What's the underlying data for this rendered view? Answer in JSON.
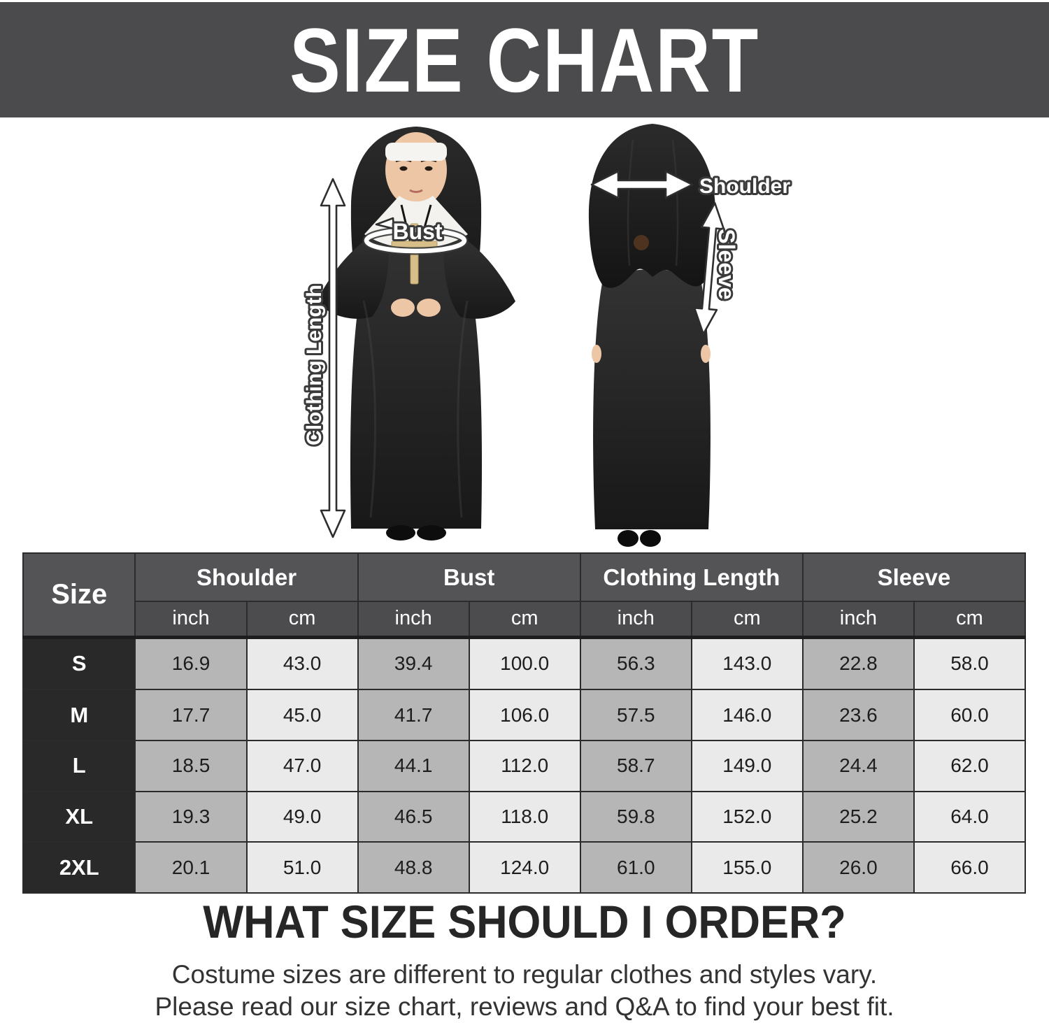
{
  "banner": {
    "title": "SIZE CHART"
  },
  "diagram": {
    "labels": {
      "bust": "Bust",
      "clothing_length": "Clothing Length",
      "shoulder": "Shoulder",
      "sleeve": "Sleeve"
    }
  },
  "table": {
    "size_header": "Size",
    "groups": [
      {
        "label": "Shoulder"
      },
      {
        "label": "Bust"
      },
      {
        "label": "Clothing Length"
      },
      {
        "label": "Sleeve"
      }
    ],
    "unit_headers": [
      "inch",
      "cm",
      "inch",
      "cm",
      "inch",
      "cm",
      "inch",
      "cm"
    ],
    "rows": [
      {
        "size": "S",
        "values": [
          "16.9",
          "43.0",
          "39.4",
          "100.0",
          "56.3",
          "143.0",
          "22.8",
          "58.0"
        ]
      },
      {
        "size": "M",
        "values": [
          "17.7",
          "45.0",
          "41.7",
          "106.0",
          "57.5",
          "146.0",
          "23.6",
          "60.0"
        ]
      },
      {
        "size": "L",
        "values": [
          "18.5",
          "47.0",
          "44.1",
          "112.0",
          "58.7",
          "149.0",
          "24.4",
          "62.0"
        ]
      },
      {
        "size": "XL",
        "values": [
          "19.3",
          "49.0",
          "46.5",
          "118.0",
          "59.8",
          "152.0",
          "25.2",
          "64.0"
        ]
      },
      {
        "size": "2XL",
        "values": [
          "20.1",
          "51.0",
          "48.8",
          "124.0",
          "61.0",
          "155.0",
          "26.0",
          "66.0"
        ]
      }
    ]
  },
  "footer": {
    "heading": "WHAT SIZE SHOULD I ORDER?",
    "line1": "Costume sizes are different to regular clothes and styles vary.",
    "line2": "Please read our size chart, reviews and Q&A to find your best fit."
  },
  "colors": {
    "banner_bg": "#4b4b4d",
    "header_bg": "#545457",
    "unit_header_bg": "#4c4c4f",
    "size_cell_bg": "#292929",
    "inch_cell_bg": "#b6b6b6",
    "cm_cell_bg": "#eaeaea",
    "robe_black": "#1e1e1e",
    "skin_tone": "#edc6a6",
    "cross_gold": "#d8bf8a",
    "annotation_white": "#ffffff"
  },
  "chart_data": {
    "type": "table",
    "title": "SIZE CHART",
    "columns": [
      "Size",
      "Shoulder inch",
      "Shoulder cm",
      "Bust inch",
      "Bust cm",
      "Clothing Length inch",
      "Clothing Length cm",
      "Sleeve inch",
      "Sleeve cm"
    ],
    "rows": [
      [
        "S",
        16.9,
        43.0,
        39.4,
        100.0,
        56.3,
        143.0,
        22.8,
        58.0
      ],
      [
        "M",
        17.7,
        45.0,
        41.7,
        106.0,
        57.5,
        146.0,
        23.6,
        60.0
      ],
      [
        "L",
        18.5,
        47.0,
        44.1,
        112.0,
        58.7,
        149.0,
        24.4,
        62.0
      ],
      [
        "XL",
        19.3,
        49.0,
        46.5,
        118.0,
        59.8,
        152.0,
        25.2,
        64.0
      ],
      [
        "2XL",
        20.1,
        51.0,
        48.8,
        124.0,
        61.0,
        155.0,
        26.0,
        66.0
      ]
    ]
  }
}
